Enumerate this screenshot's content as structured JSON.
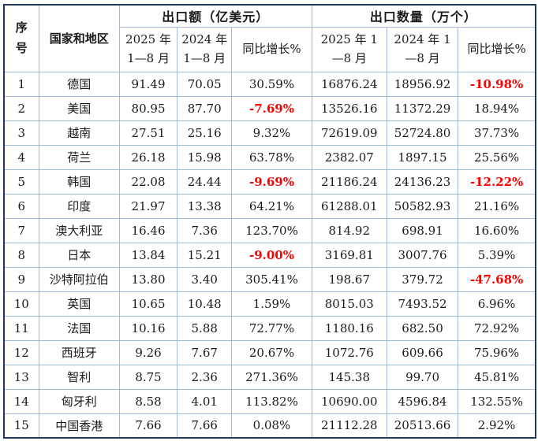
{
  "chart_data": {
    "type": "table",
    "headers": {
      "seq": "序号",
      "country": "国家和地区",
      "group_export_value": "出口额（亿美元）",
      "group_export_qty": "出口数量（万个）",
      "value_2025": "2025 年\n1—8 月",
      "value_2024": "2024 年\n1—8 月",
      "value_growth": "同比增长%",
      "qty_2025": "2025 年 1\n—8 月",
      "qty_2024": "2024 年 1\n—8 月",
      "qty_growth": "同比增长%"
    },
    "column_keys": [
      "seq",
      "country",
      "value-2025",
      "value-2024",
      "value-growth",
      "qty-2025",
      "qty-2024",
      "qty-growth"
    ],
    "rows": [
      [
        "1",
        "德国",
        "91.49",
        "70.05",
        "30.59%",
        "16876.24",
        "18956.92",
        "-10.98%"
      ],
      [
        "2",
        "美国",
        "80.95",
        "87.70",
        "-7.69%",
        "13526.16",
        "11372.29",
        "18.94%"
      ],
      [
        "3",
        "越南",
        "27.51",
        "25.16",
        "9.32%",
        "72619.09",
        "52724.80",
        "37.73%"
      ],
      [
        "4",
        "荷兰",
        "26.18",
        "15.98",
        "63.78%",
        "2382.07",
        "1897.15",
        "25.56%"
      ],
      [
        "5",
        "韩国",
        "22.08",
        "24.44",
        "-9.69%",
        "21186.24",
        "24136.23",
        "-12.22%"
      ],
      [
        "6",
        "印度",
        "21.97",
        "13.38",
        "64.21%",
        "61288.01",
        "50582.93",
        "21.16%"
      ],
      [
        "7",
        "澳大利亚",
        "16.46",
        "7.36",
        "123.70%",
        "814.92",
        "698.91",
        "16.60%"
      ],
      [
        "8",
        "日本",
        "13.84",
        "15.21",
        "-9.00%",
        "3169.81",
        "3007.76",
        "5.39%"
      ],
      [
        "9",
        "沙特阿拉伯",
        "13.80",
        "3.40",
        "305.41%",
        "198.67",
        "379.72",
        "-47.68%"
      ],
      [
        "10",
        "英国",
        "10.65",
        "10.48",
        "1.59%",
        "8015.03",
        "7493.52",
        "6.96%"
      ],
      [
        "11",
        "法国",
        "10.16",
        "5.88",
        "72.77%",
        "1180.16",
        "682.50",
        "72.92%"
      ],
      [
        "12",
        "西班牙",
        "9.26",
        "7.67",
        "20.67%",
        "1072.76",
        "609.66",
        "75.96%"
      ],
      [
        "13",
        "智利",
        "8.75",
        "2.36",
        "271.36%",
        "145.38",
        "99.70",
        "45.81%"
      ],
      [
        "14",
        "匈牙利",
        "8.58",
        "4.01",
        "113.82%",
        "10690.00",
        "4596.84",
        "132.55%"
      ],
      [
        "15",
        "中国香港",
        "7.66",
        "7.66",
        "0.08%",
        "21112.28",
        "20513.66",
        "2.92%"
      ]
    ],
    "colors": {
      "negative_value": "#FF0000",
      "text": "#1A1A1A",
      "border_outer": "#1F3864",
      "border_inner": "#A0BBD7"
    }
  }
}
